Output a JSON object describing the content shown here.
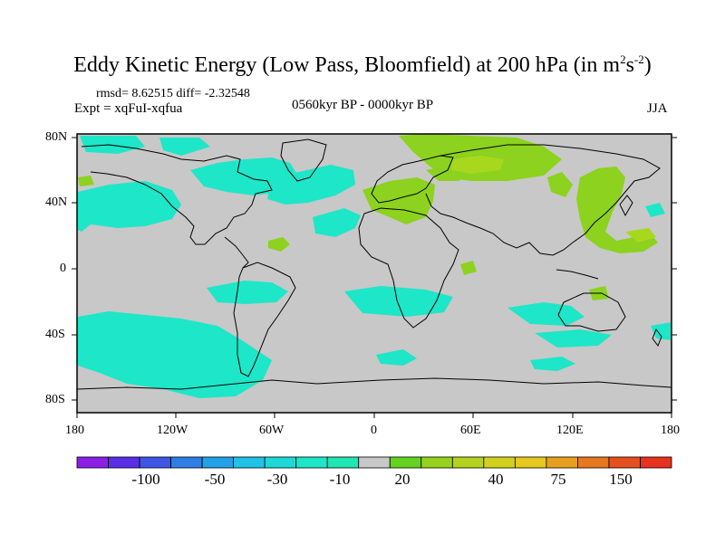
{
  "title": {
    "main": "Eddy Kinetic Energy (Low Pass, Bloomfield) at 200 hPa (in m",
    "sup1": "2",
    "mid": "s",
    "sup2": "-2",
    "close": ")"
  },
  "stats": "rmsd= 8.62515 diff= -2.32548",
  "experiment": "Expt = xqFuI-xqfua",
  "period": "0560kyr BP - 0000kyr BP",
  "season": "JJA",
  "lat_ticks": [
    "80N",
    "40N",
    "0",
    "40S",
    "80S"
  ],
  "lon_ticks": [
    "180",
    "120W",
    "60W",
    "0",
    "60E",
    "120E",
    "180"
  ],
  "colorbar": {
    "colors": [
      "#8c1ee6",
      "#5a2ee6",
      "#3e55e6",
      "#2e7ee6",
      "#22a2e6",
      "#1ec3e6",
      "#1ed8d8",
      "#1ee6c8",
      "#1ee6b4",
      "#c8c8c8",
      "#64d21e",
      "#96d21e",
      "#b4d21e",
      "#d2d21e",
      "#e6c81e",
      "#e6a01e",
      "#e6781e",
      "#e6501e",
      "#e6321e"
    ],
    "labels": [
      "-100",
      "-50",
      "-30",
      "-10",
      "20",
      "40",
      "75",
      "150"
    ]
  }
}
